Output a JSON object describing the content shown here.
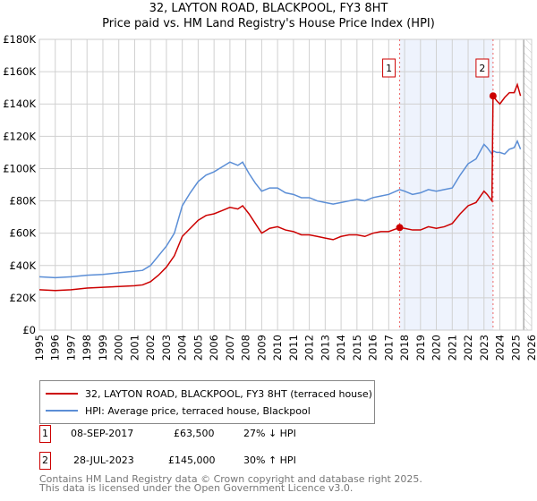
{
  "chart_data": {
    "type": "line",
    "title": "32, LAYTON ROAD, BLACKPOOL, FY3 8HT",
    "subtitle": "Price paid vs. HM Land Registry's House Price Index (HPI)",
    "xlim": [
      1995,
      2026
    ],
    "ylim": [
      0,
      180000
    ],
    "x_ticks": [
      "1995",
      "1996",
      "1997",
      "1998",
      "1999",
      "2000",
      "2001",
      "2002",
      "2003",
      "2004",
      "2005",
      "2006",
      "2007",
      "2008",
      "2009",
      "2010",
      "2011",
      "2012",
      "2013",
      "2014",
      "2015",
      "2016",
      "2017",
      "2018",
      "2019",
      "2020",
      "2021",
      "2022",
      "2023",
      "2024",
      "2025",
      "2026"
    ],
    "y_ticks": [
      {
        "v": 0,
        "l": "£0"
      },
      {
        "v": 20000,
        "l": "£20K"
      },
      {
        "v": 40000,
        "l": "£40K"
      },
      {
        "v": 60000,
        "l": "£60K"
      },
      {
        "v": 80000,
        "l": "£80K"
      },
      {
        "v": 100000,
        "l": "£100K"
      },
      {
        "v": 120000,
        "l": "£120K"
      },
      {
        "v": 140000,
        "l": "£140K"
      },
      {
        "v": 160000,
        "l": "£160K"
      },
      {
        "v": 180000,
        "l": "£180K"
      }
    ],
    "grid": true,
    "shaded_range": [
      2017.69,
      2023.57
    ],
    "series": [
      {
        "name": "32, LAYTON ROAD, BLACKPOOL, FY3 8HT (terraced house)",
        "color": "#cc0000",
        "x": [
          1995,
          1996,
          1997,
          1998,
          1999,
          2000,
          2001,
          2001.5,
          2002,
          2002.5,
          2003,
          2003.5,
          2004,
          2004.5,
          2005,
          2005.5,
          2006,
          2006.5,
          2007,
          2007.5,
          2007.8,
          2008.2,
          2008.6,
          2009,
          2009.5,
          2010,
          2010.5,
          2011,
          2011.5,
          2012,
          2012.5,
          2013,
          2013.5,
          2014,
          2014.5,
          2015,
          2015.5,
          2016,
          2016.5,
          2017,
          2017.69,
          2018,
          2018.5,
          2019,
          2019.5,
          2020,
          2020.5,
          2021,
          2021.5,
          2022,
          2022.5,
          2023,
          2023.2,
          2023.5,
          2023.57,
          2023.8,
          2024,
          2024.3,
          2024.6,
          2024.9,
          2025.1,
          2025.3
        ],
        "y": [
          25000,
          24500,
          25000,
          26000,
          26500,
          27000,
          27500,
          28000,
          30000,
          34000,
          39000,
          46000,
          58000,
          63000,
          68000,
          71000,
          72000,
          74000,
          76000,
          75000,
          77000,
          72000,
          66000,
          60000,
          63000,
          64000,
          62000,
          61000,
          59000,
          59000,
          58000,
          57000,
          56000,
          58000,
          59000,
          59000,
          58000,
          60000,
          61000,
          61000,
          63500,
          63000,
          62000,
          62000,
          64000,
          63000,
          64000,
          66000,
          72000,
          77000,
          79000,
          86000,
          84000,
          80000,
          145000,
          142000,
          140000,
          144000,
          147000,
          147000,
          152000,
          145000
        ]
      },
      {
        "name": "HPI: Average price, terraced house, Blackpool",
        "color": "#5b8ed6",
        "x": [
          1995,
          1996,
          1997,
          1998,
          1999,
          2000,
          2001,
          2001.5,
          2002,
          2002.5,
          2003,
          2003.5,
          2004,
          2004.5,
          2005,
          2005.5,
          2006,
          2006.5,
          2007,
          2007.5,
          2007.8,
          2008.2,
          2008.6,
          2009,
          2009.5,
          2010,
          2010.5,
          2011,
          2011.5,
          2012,
          2012.5,
          2013,
          2013.5,
          2014,
          2014.5,
          2015,
          2015.5,
          2016,
          2016.5,
          2017,
          2017.69,
          2018,
          2018.5,
          2019,
          2019.5,
          2020,
          2020.5,
          2021,
          2021.5,
          2022,
          2022.5,
          2023,
          2023.2,
          2023.5,
          2023.57,
          2023.8,
          2024,
          2024.3,
          2024.6,
          2024.9,
          2025.1,
          2025.3
        ],
        "y": [
          33000,
          32500,
          33000,
          34000,
          34500,
          35500,
          36500,
          37000,
          40000,
          46000,
          52000,
          60000,
          77000,
          85000,
          92000,
          96000,
          98000,
          101000,
          104000,
          102000,
          104000,
          97000,
          91000,
          86000,
          88000,
          88000,
          85000,
          84000,
          82000,
          82000,
          80000,
          79000,
          78000,
          79000,
          80000,
          81000,
          80000,
          82000,
          83000,
          84000,
          87000,
          86000,
          84000,
          85000,
          87000,
          86000,
          87000,
          88000,
          96000,
          103000,
          106000,
          115000,
          113000,
          109000,
          111000,
          110000,
          110000,
          109000,
          112000,
          113000,
          117000,
          112000
        ]
      }
    ],
    "markers": [
      {
        "label": "1",
        "x": 2017.69,
        "y": 63500
      },
      {
        "label": "2",
        "x": 2023.57,
        "y": 145000
      }
    ]
  },
  "legend": {
    "red": "32, LAYTON ROAD, BLACKPOOL, FY3 8HT (terraced house)",
    "blue": "HPI: Average price, terraced house, Blackpool"
  },
  "transactions": [
    {
      "num": "1",
      "date": "08-SEP-2017",
      "price": "£63,500",
      "hpi": "27% ↓ HPI"
    },
    {
      "num": "2",
      "date": "28-JUL-2023",
      "price": "£145,000",
      "hpi": "30% ↑ HPI"
    }
  ],
  "footer": {
    "line1": "Contains HM Land Registry data © Crown copyright and database right 2025.",
    "line2": "This data is licensed under the Open Government Licence v3.0."
  }
}
